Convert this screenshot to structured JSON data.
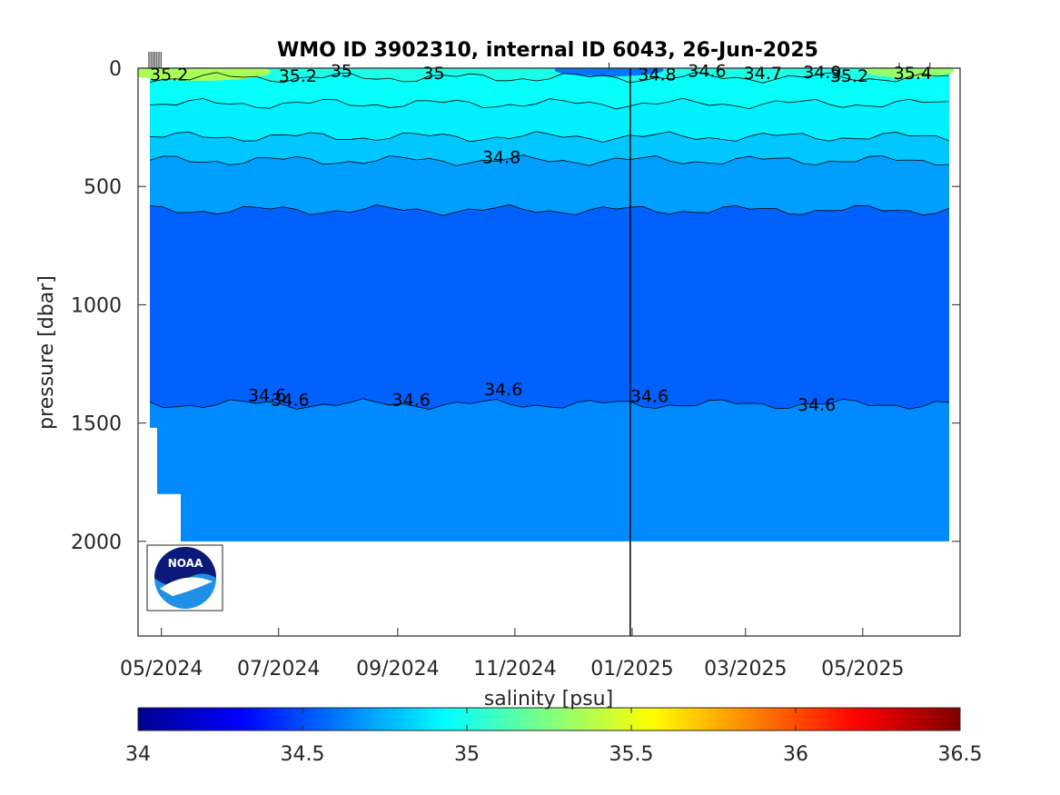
{
  "chart_data": {
    "type": "heatmap",
    "title": "WMO ID 3902310, internal ID 6043, 26-Jun-2025",
    "ylabel": "pressure [dbar]",
    "y_axis": {
      "range": [
        0,
        2400
      ],
      "reversed": true,
      "ticks": [
        0,
        500,
        1000,
        1500,
        2000
      ]
    },
    "x_axis": {
      "ticks": [
        "05/2024",
        "07/2024",
        "09/2024",
        "11/2024",
        "01/2025",
        "03/2025",
        "05/2025"
      ],
      "range": [
        "2024-04-25",
        "2025-06-15"
      ]
    },
    "vertical_marker": {
      "date": "2024-12-31"
    },
    "colorbar": {
      "label": "salinity [psu]",
      "range": [
        34,
        36.5
      ],
      "ticks": [
        34,
        34.5,
        35,
        35.5,
        36,
        36.5
      ],
      "colormap": "jet"
    },
    "salinity_layers": [
      {
        "from_dbar": 0,
        "to_dbar": 40,
        "salinity_psu": 35.0,
        "note": "surface, patchy 34.6–35.4"
      },
      {
        "from_dbar": 40,
        "to_dbar": 150,
        "salinity_psu": 34.95
      },
      {
        "from_dbar": 150,
        "to_dbar": 290,
        "salinity_psu": 34.9
      },
      {
        "from_dbar": 290,
        "to_dbar": 390,
        "salinity_psu": 34.8
      },
      {
        "from_dbar": 390,
        "to_dbar": 600,
        "salinity_psu": 34.7
      },
      {
        "from_dbar": 600,
        "to_dbar": 1420,
        "salinity_psu": 34.55
      },
      {
        "from_dbar": 1420,
        "to_dbar": 2000,
        "salinity_psu": 34.65
      }
    ],
    "contour_labels": [
      {
        "text": "35.2",
        "date": "2024-04-25",
        "pressure": 25
      },
      {
        "text": "35.2",
        "date": "2024-07-01",
        "pressure": 30
      },
      {
        "text": "35",
        "date": "2024-07-28",
        "pressure": 10
      },
      {
        "text": "35",
        "date": "2024-09-14",
        "pressure": 20
      },
      {
        "text": "34.8",
        "date": "2025-01-04",
        "pressure": 25
      },
      {
        "text": "34.6",
        "date": "2025-01-30",
        "pressure": 10
      },
      {
        "text": "34.7",
        "date": "2025-02-28",
        "pressure": 20
      },
      {
        "text": "34.9",
        "date": "2025-03-31",
        "pressure": 15
      },
      {
        "text": "35.2",
        "date": "2025-04-14",
        "pressure": 30
      },
      {
        "text": "35.4",
        "date": "2025-05-17",
        "pressure": 20
      },
      {
        "text": "34.8",
        "date": "2024-10-15",
        "pressure": 375
      },
      {
        "text": "34.6",
        "date": "2024-06-15",
        "pressure": 1380
      },
      {
        "text": "34.6",
        "date": "2024-06-27",
        "pressure": 1400
      },
      {
        "text": "34.6",
        "date": "2024-08-29",
        "pressure": 1400
      },
      {
        "text": "34.6",
        "date": "2024-10-16",
        "pressure": 1355
      },
      {
        "text": "34.6",
        "date": "2024-12-31",
        "pressure": 1385
      },
      {
        "text": "34.6",
        "date": "2025-03-28",
        "pressure": 1420
      }
    ]
  },
  "logo": {
    "text": "NOAA"
  }
}
